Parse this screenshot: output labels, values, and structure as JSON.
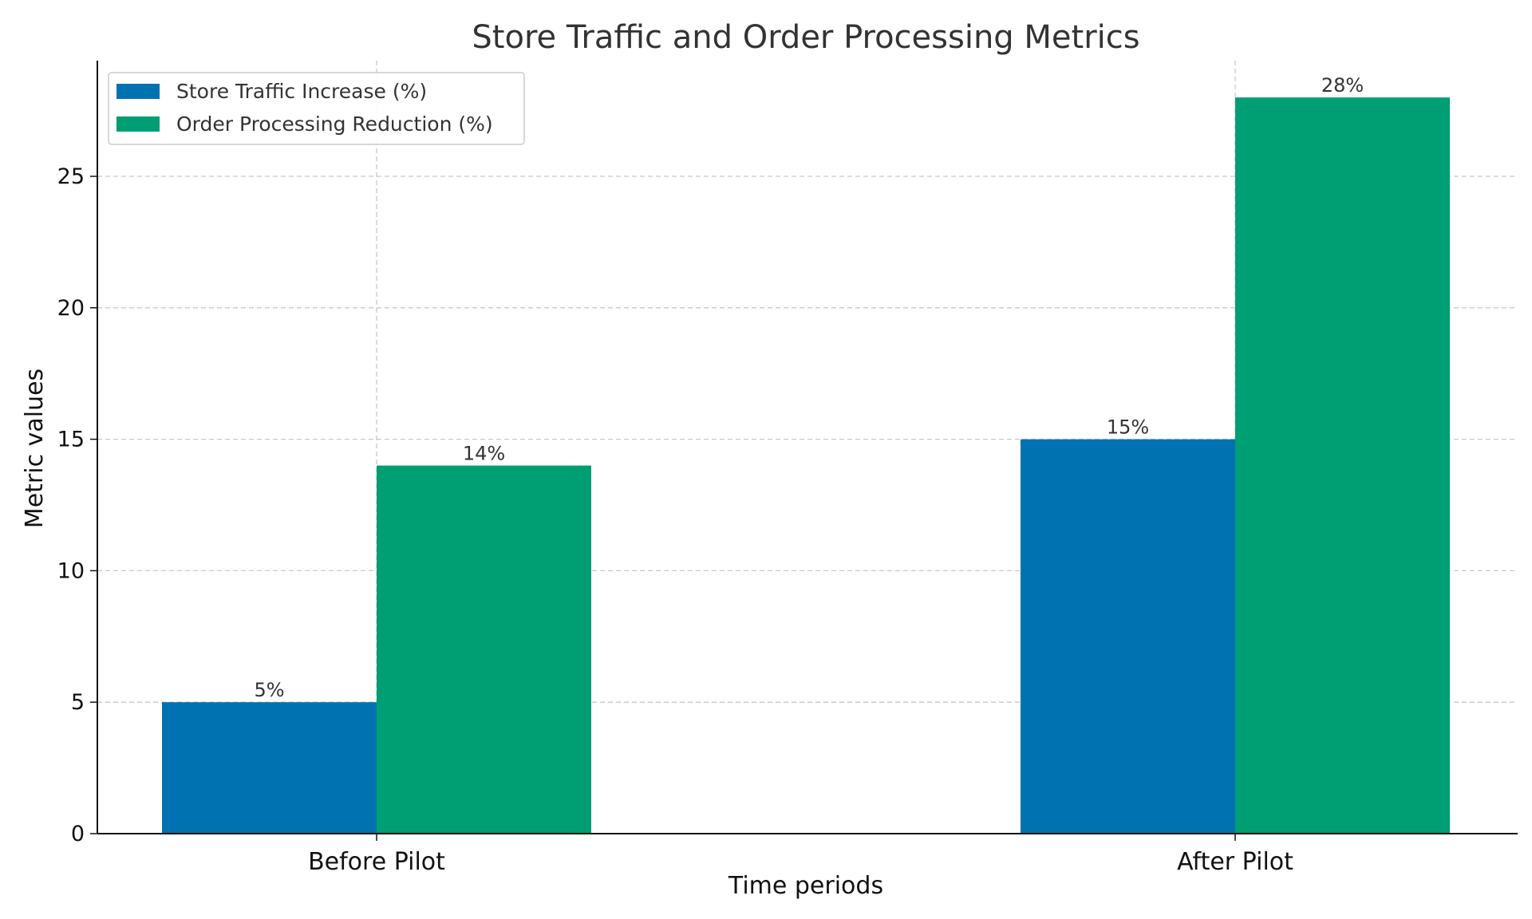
{
  "chart_data": {
    "type": "bar",
    "title": "Store Traffic and Order Processing Metrics",
    "xlabel": "Time periods",
    "ylabel": "Metric values",
    "categories": [
      "Before Pilot",
      "After Pilot"
    ],
    "series": [
      {
        "name": "Store Traffic Increase (%)",
        "values": [
          5,
          15
        ],
        "labels": [
          "5%",
          "15%"
        ],
        "color": "#0072b2"
      },
      {
        "name": "Order Processing Reduction (%)",
        "values": [
          14,
          28
        ],
        "labels": [
          "14%",
          "28%"
        ],
        "color": "#009e73"
      }
    ],
    "ylim": [
      0,
      29.4
    ],
    "yticks": [
      0,
      5,
      10,
      15,
      20,
      25
    ],
    "grid": true,
    "legend_position": "top-left"
  }
}
